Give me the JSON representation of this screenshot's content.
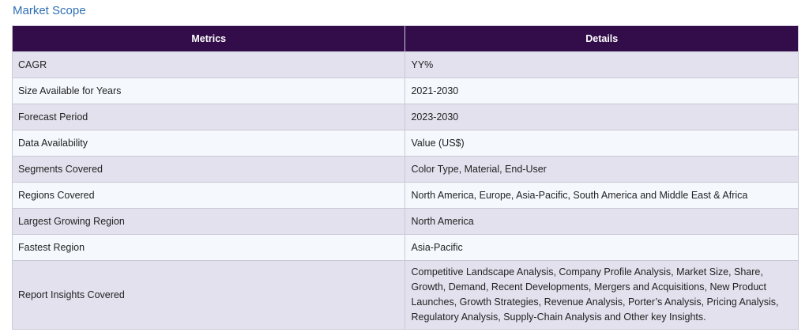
{
  "section": {
    "title": "Market Scope"
  },
  "table": {
    "headers": [
      "Metrics",
      "Details"
    ],
    "rows": [
      {
        "metric": "CAGR",
        "detail": "YY%"
      },
      {
        "metric": "Size Available for Years",
        "detail": "2021-2030"
      },
      {
        "metric": "Forecast Period",
        "detail": "2023-2030"
      },
      {
        "metric": "Data Availability",
        "detail": "Value (US$)"
      },
      {
        "metric": "Segments Covered",
        "detail": "Color Type, Material, End-User"
      },
      {
        "metric": "Regions Covered",
        "detail": "North America, Europe, Asia-Pacific, South America and Middle East & Africa"
      },
      {
        "metric": "Largest Growing Region",
        "detail": "North America"
      },
      {
        "metric": "Fastest Region",
        "detail": "Asia-Pacific"
      },
      {
        "metric": "Report Insights Covered",
        "detail": "Competitive Landscape Analysis, Company Profile Analysis, Market Size, Share, Growth, Demand, Recent Developments, Mergers and Acquisitions, New Product Launches, Growth Strategies, Revenue Analysis, Porter’s Analysis, Pricing Analysis, Regulatory Analysis, Supply-Chain Analysis and Other key Insights."
      }
    ]
  },
  "colors": {
    "header_bg": "#320d4a",
    "row_shaded": "#e4e1ee",
    "row_light": "#f5f9fd",
    "title": "#2f6fb5"
  }
}
